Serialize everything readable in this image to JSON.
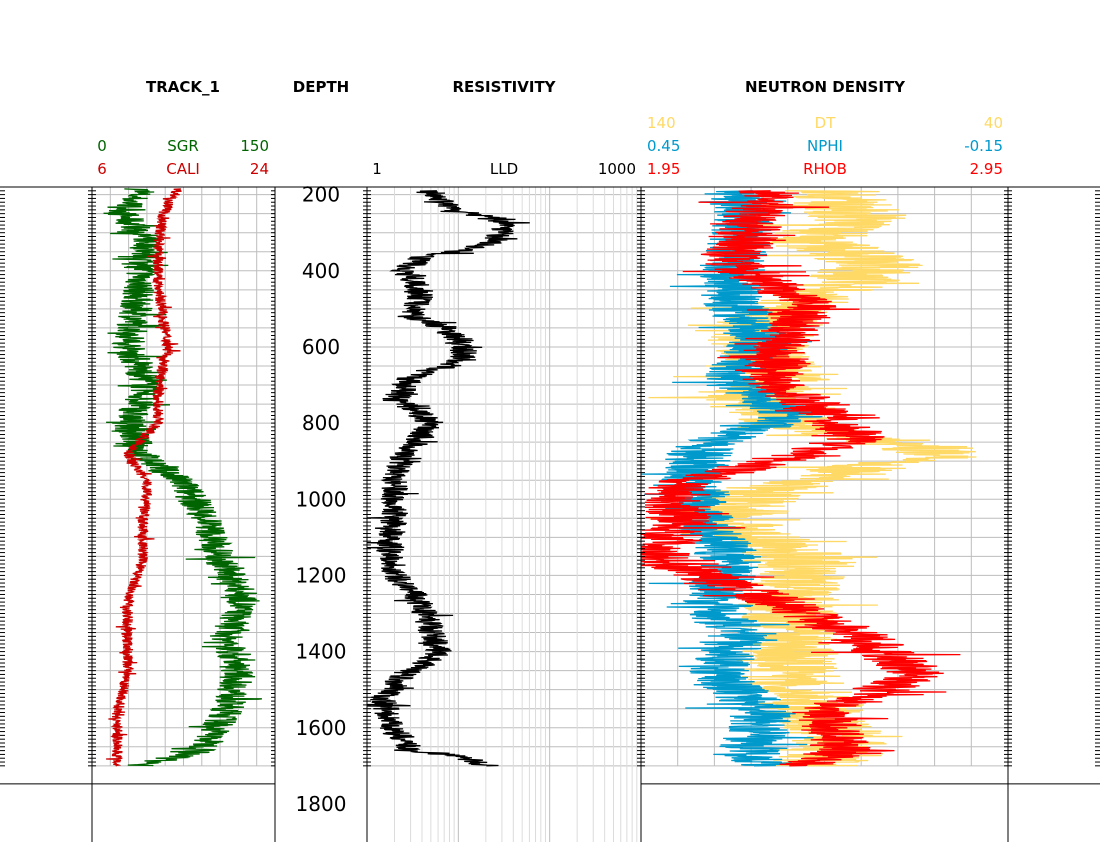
{
  "chart_data": {
    "type": "line",
    "depth_axis": {
      "label": "DEPTH",
      "range": [
        180,
        1900
      ],
      "tick_labels": [
        "200",
        "400",
        "600",
        "800",
        "1000",
        "1200",
        "1400",
        "1600",
        "1800"
      ],
      "tick_values": [
        200,
        400,
        600,
        800,
        1000,
        1200,
        1400,
        1600,
        1800
      ],
      "data_bottom": 1700
    },
    "tracks": [
      {
        "title": "TRACK_1",
        "grid": true,
        "curves": [
          {
            "name": "SGR",
            "color": "#006400",
            "scale_min": 0,
            "scale_max": 150,
            "scale_min_label": "0",
            "scale_max_label": "150",
            "depth": [
              185,
              250,
              320,
              420,
              520,
              600,
              700,
              800,
              880,
              960,
              1060,
              1160,
              1260,
              1360,
              1460,
              1560,
              1660,
              1700
            ],
            "values": [
              40,
              25,
              45,
              40,
              35,
              30,
              45,
              30,
              40,
              75,
              95,
              105,
              125,
              110,
              120,
              110,
              90,
              40
            ]
          },
          {
            "name": "CALI",
            "color": "#cc0000",
            "scale_min": 6,
            "scale_max": 24,
            "scale_min_label": "6",
            "scale_max_label": "24",
            "depth": [
              185,
              250,
              330,
              430,
              530,
              600,
              700,
              800,
              880,
              960,
              1060,
              1160,
              1260,
              1360,
              1460,
              1560,
              1660,
              1700
            ],
            "values": [
              14.5,
              13,
              12.5,
              12.5,
              13,
              13.5,
              12.5,
              12.5,
              9.5,
              11.5,
              11,
              11,
              9.5,
              9.5,
              9.5,
              8.5,
              8.5,
              8.5
            ]
          }
        ]
      },
      {
        "title": "RESISTIVITY",
        "grid": true,
        "log_scale": true,
        "curves": [
          {
            "name": "LLD",
            "color": "#000000",
            "scale_min": 1,
            "scale_max": 1000,
            "scale_min_label": "1",
            "scale_max_label": "1000",
            "depth": [
              190,
              240,
              280,
              320,
              360,
              400,
              460,
              520,
              560,
              620,
              680,
              740,
              800,
              880,
              960,
              1040,
              1120,
              1200,
              1280,
              1340,
              1400,
              1460,
              1520,
              1600,
              1660,
              1700
            ],
            "values": [
              5,
              8,
              35,
              25,
              4,
              2.5,
              4,
              3,
              8,
              12,
              3,
              2,
              5,
              2.5,
              2,
              2,
              1.8,
              2,
              4,
              5,
              6,
              2.5,
              1.5,
              1.8,
              3,
              20
            ]
          }
        ]
      },
      {
        "title": "NEUTRON DENSITY",
        "grid": true,
        "curves": [
          {
            "name": "DT",
            "color": "#FFD966",
            "scale_min": 140,
            "scale_max": 40,
            "scale_min_label": "140",
            "scale_max_label": "40",
            "depth": [
              190,
              260,
              320,
              380,
              440,
              500,
              560,
              620,
              680,
              740,
              800,
              880,
              920,
              980,
              1060,
              1160,
              1260,
              1360,
              1460,
              1560,
              1660,
              1700
            ],
            "values": [
              90,
              80,
              95,
              75,
              85,
              100,
              110,
              105,
              100,
              110,
              100,
              55,
              80,
              110,
              115,
              95,
              100,
              100,
              100,
              90,
              85,
              95
            ]
          },
          {
            "name": "NPHI",
            "color": "#0099CC",
            "scale_min": 0.45,
            "scale_max": -0.15,
            "scale_min_label": "0.45",
            "scale_max_label": "-0.15",
            "depth": [
              190,
              280,
              380,
              480,
              580,
              680,
              780,
              860,
              960,
              1060,
              1160,
              1260,
              1360,
              1460,
              1560,
              1660,
              1700
            ],
            "values": [
              0.3,
              0.28,
              0.3,
              0.3,
              0.25,
              0.3,
              0.2,
              0.35,
              0.37,
              0.35,
              0.3,
              0.33,
              0.3,
              0.32,
              0.25,
              0.27,
              0.25
            ]
          },
          {
            "name": "RHOB",
            "color": "#FF0000",
            "scale_min": 1.95,
            "scale_max": 2.95,
            "scale_min_label": "1.95",
            "scale_max_label": "2.95",
            "depth": [
              190,
              280,
              380,
              480,
              580,
              680,
              780,
              840,
              960,
              1060,
              1160,
              1260,
              1360,
              1460,
              1560,
              1660,
              1700
            ],
            "values": [
              2.3,
              2.25,
              2.2,
              2.4,
              2.35,
              2.3,
              2.45,
              2.55,
              2.05,
              2.05,
              2.0,
              2.3,
              2.55,
              2.7,
              2.45,
              2.5,
              2.4
            ]
          }
        ]
      }
    ]
  }
}
